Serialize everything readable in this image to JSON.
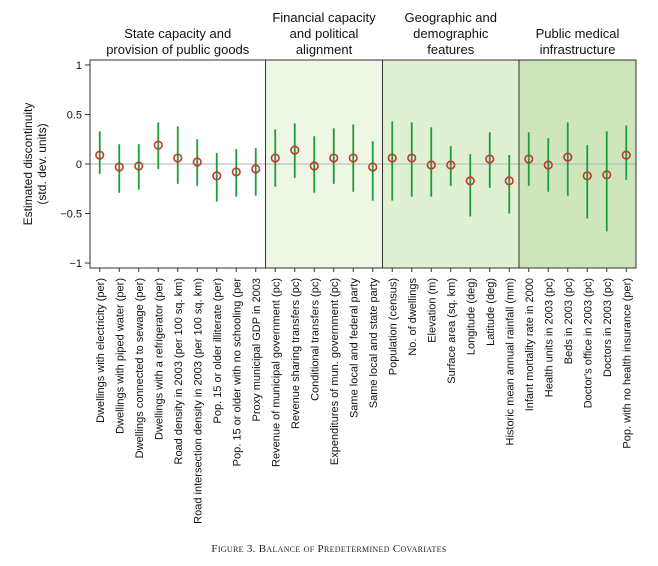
{
  "caption": "Figure 3. Balance of Predetermined Covariates",
  "chart_data": {
    "type": "scatter",
    "ylabel": "Estimated discontinuity\n(std. dev. units)",
    "ylim": [
      -1.05,
      1.05
    ],
    "yticks": [
      1,
      0.5,
      0,
      -0.5,
      -1
    ],
    "ytick_labels": [
      "1",
      "0.5",
      "0",
      "−0.5",
      "−1"
    ],
    "groups": [
      {
        "title": "State capacity and\nprovision of public goods",
        "start": 0,
        "end": 8,
        "background": "#ffffff"
      },
      {
        "title": "Financial capacity\nand political\nalignment",
        "start": 9,
        "end": 14,
        "background": "#eef6e6"
      },
      {
        "title": "Geographic and\ndemographic\nfeatures",
        "start": 15,
        "end": 21,
        "background": "#e0f0d2"
      },
      {
        "title": "Public medical\ninfrastructure",
        "start": 22,
        "end": 27,
        "background": "#cfe6bd"
      }
    ],
    "points": [
      {
        "label": "Dwellings with electricity (per)",
        "estimate": 0.09,
        "ci": [
          -0.1,
          0.33
        ]
      },
      {
        "label": "Dwellings with piped water (per)",
        "estimate": -0.03,
        "ci": [
          -0.29,
          0.2
        ]
      },
      {
        "label": "Dwellings connected to sewage (per)",
        "estimate": -0.02,
        "ci": [
          -0.26,
          0.2
        ]
      },
      {
        "label": "Dwellings with a refrigerator (per)",
        "estimate": 0.19,
        "ci": [
          -0.05,
          0.42
        ]
      },
      {
        "label": "Road density in 2003 (per 100 sq. km)",
        "estimate": 0.06,
        "ci": [
          -0.2,
          0.38
        ]
      },
      {
        "label": "Road intersection density in 2003 (per 100 sq. km)",
        "estimate": 0.02,
        "ci": [
          -0.22,
          0.25
        ]
      },
      {
        "label": "Pop. 15 or older illiterate (per)",
        "estimate": -0.12,
        "ci": [
          -0.38,
          0.11
        ]
      },
      {
        "label": "Pop. 15 or older with no schooling (per",
        "estimate": -0.08,
        "ci": [
          -0.33,
          0.15
        ]
      },
      {
        "label": "Proxy municipal GDP in 2003",
        "estimate": -0.05,
        "ci": [
          -0.32,
          0.16
        ]
      },
      {
        "label": "Revenue of municipal government (pc)",
        "estimate": 0.06,
        "ci": [
          -0.23,
          0.35
        ]
      },
      {
        "label": "Revenue sharing transfers (pc)",
        "estimate": 0.14,
        "ci": [
          -0.14,
          0.41
        ]
      },
      {
        "label": "Conditional transfers (pc)",
        "estimate": -0.02,
        "ci": [
          -0.29,
          0.28
        ]
      },
      {
        "label": "Expenditures of mun. government (pc)",
        "estimate": 0.06,
        "ci": [
          -0.2,
          0.36
        ]
      },
      {
        "label": "Same local and federal party",
        "estimate": 0.06,
        "ci": [
          -0.28,
          0.4
        ]
      },
      {
        "label": "Same local and state party",
        "estimate": -0.03,
        "ci": [
          -0.37,
          0.23
        ]
      },
      {
        "label": "Population (census)",
        "estimate": 0.06,
        "ci": [
          -0.37,
          0.43
        ]
      },
      {
        "label": "No. of dwellings",
        "estimate": 0.06,
        "ci": [
          -0.33,
          0.42
        ]
      },
      {
        "label": "Elevation (m)",
        "estimate": -0.01,
        "ci": [
          -0.33,
          0.37
        ]
      },
      {
        "label": "Surface area (sq. km)",
        "estimate": -0.01,
        "ci": [
          -0.22,
          0.18
        ]
      },
      {
        "label": "Longitude (deg)",
        "estimate": -0.17,
        "ci": [
          -0.53,
          0.1
        ]
      },
      {
        "label": "Latitude (deg)",
        "estimate": 0.05,
        "ci": [
          -0.24,
          0.32
        ]
      },
      {
        "label": "Historic mean annual rainfall (mm)",
        "estimate": -0.17,
        "ci": [
          -0.5,
          0.09
        ]
      },
      {
        "label": "Infant mortality rate in 2000",
        "estimate": 0.05,
        "ci": [
          -0.22,
          0.32
        ]
      },
      {
        "label": "Health units in 2003 (pc)",
        "estimate": -0.01,
        "ci": [
          -0.28,
          0.26
        ]
      },
      {
        "label": "Beds in 2003 (pc)",
        "estimate": 0.07,
        "ci": [
          -0.32,
          0.42
        ]
      },
      {
        "label": "Doctor's office in 2003 (pc)",
        "estimate": -0.12,
        "ci": [
          -0.55,
          0.19
        ]
      },
      {
        "label": "Doctors in 2003 (pc)",
        "estimate": -0.11,
        "ci": [
          -0.68,
          0.33
        ]
      },
      {
        "label": "Pop. with no health insurance (per)",
        "estimate": 0.09,
        "ci": [
          -0.16,
          0.39
        ]
      }
    ],
    "colors": {
      "estimate": "#c0392b",
      "ci": "#1a9e3a",
      "zero_line": "#b3b3b3",
      "frame": "#333333"
    }
  }
}
